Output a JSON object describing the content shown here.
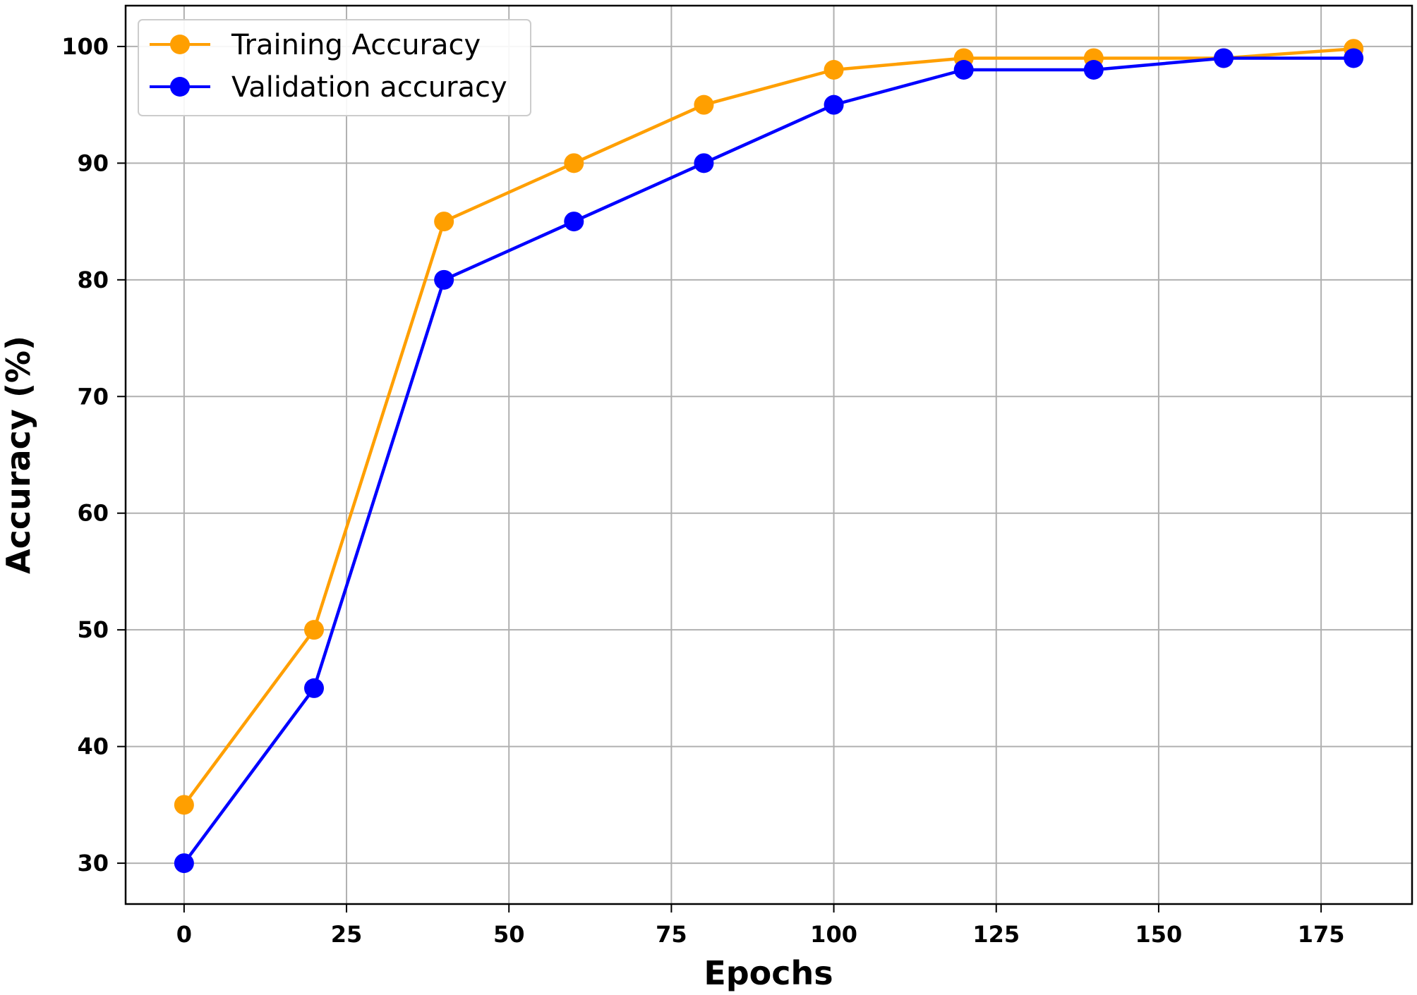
{
  "chart_data": {
    "type": "line",
    "title": "",
    "xlabel": "Epochs",
    "ylabel": "Accuracy (%)",
    "xlim": [
      -9,
      189
    ],
    "ylim": [
      26.5,
      103.5
    ],
    "xticks": [
      0,
      25,
      50,
      75,
      100,
      125,
      150,
      175
    ],
    "yticks": [
      30,
      40,
      50,
      60,
      70,
      80,
      90,
      100
    ],
    "grid": true,
    "legend_position": "top-left",
    "x": [
      0,
      20,
      40,
      60,
      80,
      100,
      120,
      140,
      160,
      180
    ],
    "series": [
      {
        "name": "Training Accuracy",
        "color": "#ff9f00",
        "marker": "circle",
        "values": [
          35,
          50,
          85,
          90,
          95,
          98,
          99,
          99,
          99,
          99.8
        ]
      },
      {
        "name": "Validation accuracy",
        "color": "#0000ff",
        "marker": "circle",
        "values": [
          30,
          45,
          80,
          85,
          90,
          95,
          98,
          98,
          99,
          99
        ]
      }
    ]
  }
}
